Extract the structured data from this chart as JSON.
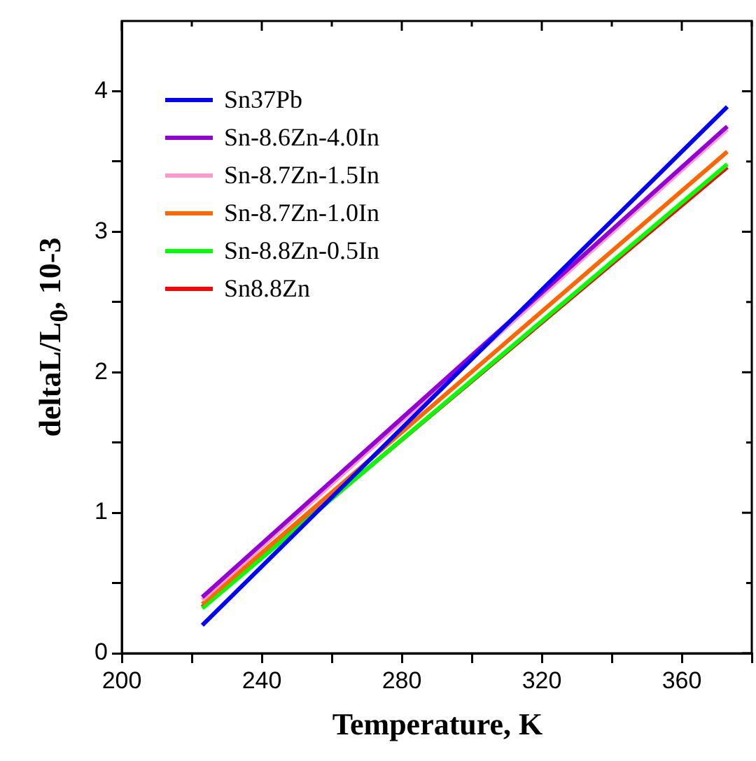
{
  "chart_data": {
    "type": "line",
    "xlabel": "Temperature, K",
    "ylabel": "deltaL/L$_{0}$, 10-3",
    "x": [
      223,
      373
    ],
    "series": [
      {
        "name": "Sn37Pb",
        "color": "#0000ff",
        "values": [
          0.2,
          3.89
        ]
      },
      {
        "name": "Sn-8.6Zn-4.0In",
        "color": "#9400d3",
        "values": [
          0.4,
          3.75
        ]
      },
      {
        "name": "Sn-8.7Zn-1.5In",
        "color": "#ff99cc",
        "values": [
          0.38,
          3.73
        ]
      },
      {
        "name": "Sn-8.7Zn-1.0In",
        "color": "#ff6600",
        "values": [
          0.35,
          3.57
        ]
      },
      {
        "name": "Sn-8.8Zn-0.5In",
        "color": "#00ff00",
        "values": [
          0.32,
          3.48
        ]
      },
      {
        "name": "Sn8.8Zn",
        "color": "#ff0000",
        "values": [
          0.33,
          3.46
        ]
      }
    ],
    "xlim": [
      200,
      380
    ],
    "ylim": [
      0,
      4.5
    ],
    "xticks": [
      200,
      {
        "value": 220,
        "label": null
      },
      240,
      {
        "value": 260,
        "label": null
      },
      280,
      {
        "value": 300,
        "label": null
      },
      320,
      {
        "value": 340,
        "label": null
      },
      360,
      {
        "value": 380,
        "label": null
      }
    ],
    "yticks": [
      0,
      {
        "value": 0.5,
        "label": null
      },
      1,
      {
        "value": 1.5,
        "label": null
      },
      2,
      {
        "value": 2.5,
        "label": null
      },
      3,
      {
        "value": 3.5,
        "label": null
      },
      4
    ],
    "grid": false,
    "legend": "top left",
    "marker": "none",
    "line_style": "solid"
  }
}
